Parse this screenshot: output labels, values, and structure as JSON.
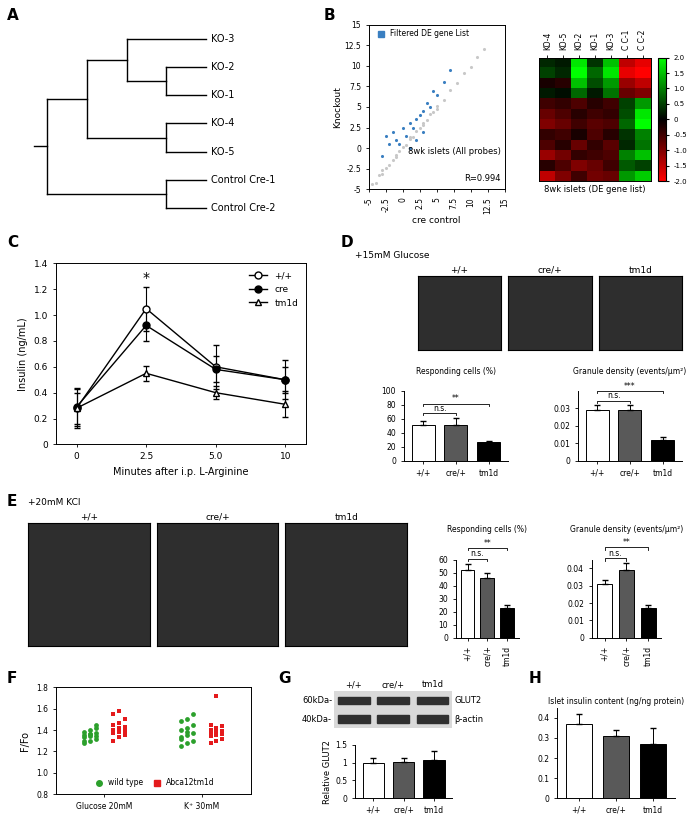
{
  "chart_data": [
    {
      "type": "dendrogram",
      "panel": "A",
      "clusters": [
        [
          [
            "KO-3",
            [
              "KO-2",
              "KO-1"
            ]
          ],
          [
            "KO-4",
            "KO-5"
          ]
        ],
        [
          "Control Cre-1",
          "Control Cre-2"
        ]
      ]
    },
    {
      "type": "scatter",
      "panel": "B",
      "xlabel": "cre control",
      "ylabel": "Knockout",
      "xlim": [
        -5,
        15
      ],
      "ylim": [
        -5,
        15
      ],
      "xticks": [
        -5,
        -2.5,
        0,
        2.5,
        5,
        7.5,
        10,
        12.5,
        15
      ],
      "yticks": [
        -5,
        -2.5,
        0,
        2.5,
        5,
        7.5,
        10,
        12.5,
        15
      ],
      "annotations": [
        "8wk islets (All probes)",
        "R=0.994"
      ],
      "legend": "upper left",
      "series": [
        {
          "color": "#c8c8c8",
          "x": [
            -4.5,
            -4,
            -3.5,
            -3,
            -2.5,
            -2,
            -1.5,
            -1,
            -0.5,
            0,
            0.5,
            1,
            1.5,
            2,
            2.5,
            3,
            3.5,
            4,
            4.5,
            5,
            6,
            7,
            8,
            9,
            10,
            11,
            12,
            -3,
            -1,
            1,
            3,
            5
          ],
          "y": [
            -4.4,
            -4.2,
            -3.3,
            -3.1,
            -2.4,
            -2.1,
            -1.4,
            -1.1,
            -0.4,
            0.1,
            0.4,
            1.1,
            1.4,
            2.1,
            2.4,
            3.1,
            3.4,
            4.1,
            4.4,
            5.1,
            5.9,
            7.1,
            7.9,
            9.1,
            9.9,
            11.1,
            12,
            -2.7,
            -0.8,
            1.3,
            2.8,
            4.7
          ]
        },
        {
          "name": "Filtered DE gene List",
          "color": "#3a7fc1",
          "x": [
            -3,
            -2.5,
            -2,
            -1.5,
            -1,
            -0.5,
            0,
            0.5,
            1,
            1.5,
            2,
            2.5,
            3,
            3.5,
            4,
            4.5,
            5,
            6,
            7,
            1,
            2,
            3
          ],
          "y": [
            -1,
            1.5,
            0.5,
            2,
            1,
            0.5,
            2.5,
            1.5,
            3,
            2.5,
            3.5,
            4,
            4.5,
            5.5,
            5,
            7,
            6.5,
            8,
            9.5,
            0,
            1,
            2
          ]
        }
      ]
    },
    {
      "type": "heatmap",
      "xlabel": "8wk islets (DE gene list)",
      "categories": [
        "KO-4",
        "KO-5",
        "KO-2",
        "KO-1",
        "KO-3",
        "C C-1",
        "C C-2"
      ],
      "cells": [
        [
          0.3,
          0.2,
          1.8,
          0.4,
          1.5,
          -1.5,
          -1.8
        ],
        [
          0.5,
          0.3,
          2.0,
          0.8,
          1.8,
          -1.8,
          -2.0
        ],
        [
          -0.2,
          -0.3,
          1.5,
          0.6,
          1.2,
          -1.2,
          -1.5
        ],
        [
          0.2,
          0.1,
          0.8,
          0.2,
          0.9,
          -0.8,
          -1.0
        ],
        [
          -0.5,
          -0.4,
          -0.6,
          -0.3,
          -0.5,
          0.5,
          1.2
        ],
        [
          -0.8,
          -0.6,
          -0.3,
          -0.5,
          -0.4,
          0.6,
          1.8
        ],
        [
          -1.0,
          -0.8,
          -0.5,
          -0.7,
          -0.6,
          0.8,
          2.0
        ],
        [
          -0.4,
          -0.5,
          -0.2,
          -0.6,
          -0.3,
          0.4,
          1.0
        ],
        [
          -0.6,
          -0.3,
          -0.8,
          -0.4,
          -0.7,
          0.3,
          0.9
        ],
        [
          -1.2,
          -0.9,
          -0.4,
          -0.5,
          -0.6,
          1.0,
          1.5
        ],
        [
          -0.3,
          -0.6,
          -1.0,
          -0.8,
          -0.5,
          0.7,
          0.5
        ],
        [
          -1.5,
          -1.0,
          -0.5,
          -0.9,
          -0.8,
          1.2,
          1.6
        ]
      ],
      "colorbar": {
        "range": [
          -2,
          2
        ],
        "ticks": [
          {
            "value": 2,
            "label": "2.0"
          },
          1.5,
          {
            "value": 1,
            "label": "1.0"
          },
          0.5,
          0,
          -0.5,
          {
            "value": -1,
            "label": "-1.0"
          },
          -1.5,
          {
            "value": -2,
            "label": "-2.0"
          }
        ]
      }
    },
    {
      "type": "line",
      "panel": "C",
      "xlabel": "Minutes after i.p. L-Arginine",
      "ylabel": "Insulin (ng/mL)",
      "categories": [
        "0",
        "2.5",
        "5.0",
        "10"
      ],
      "ylim": [
        0,
        1.4
      ],
      "yticks": [
        0,
        0.2,
        0.4,
        0.6,
        0.8,
        {
          "value": 1,
          "label": "1.0"
        },
        1.2,
        1.4
      ],
      "legend": "upper right",
      "annotations": [
        {
          "text": "*",
          "category": "2.5"
        }
      ],
      "series": [
        {
          "name": "+/+",
          "color": "#000000",
          "marker": "open circle",
          "values": [
            0.28,
            1.05,
            0.6,
            0.5
          ],
          "errors": [
            0.15,
            0.17,
            0.17,
            0.15
          ]
        },
        {
          "name": "cre",
          "color": "#000000",
          "marker": "circle",
          "values": [
            0.29,
            0.92,
            0.58,
            0.5
          ],
          "errors": [
            0.15,
            0.12,
            0.1,
            0.1
          ]
        },
        {
          "name": "tm1d",
          "color": "#000000",
          "marker": "open triangle",
          "values": [
            0.28,
            0.55,
            0.4,
            0.31
          ],
          "errors": [
            0.12,
            0.06,
            0.05,
            0.1
          ]
        }
      ]
    },
    {
      "type": "image_row",
      "panel": "D",
      "title": "+15mM Glucose",
      "labels": [
        "+/+",
        "cre/+",
        "tm1d"
      ]
    },
    {
      "type": "bar",
      "title": "Responding cells (%)",
      "categories": [
        "+/+",
        "cre/+",
        "tm1d"
      ],
      "values": [
        51,
        52,
        27
      ],
      "errors": [
        6,
        10,
        2
      ],
      "colors": [
        "#ffffff",
        "#595959",
        "#000000"
      ],
      "ylim": [
        0,
        100
      ],
      "yticks": [
        0,
        20,
        40,
        60,
        80,
        100
      ],
      "significance": [
        {
          "pair": [
            "+/+",
            "cre/+"
          ],
          "label": "n.s."
        },
        {
          "pair": [
            "+/+",
            "tm1d"
          ],
          "label": "**"
        }
      ]
    },
    {
      "type": "bar",
      "title": "Granule density (events/µm²)",
      "categories": [
        "+/+",
        "cre/+",
        "tm1d"
      ],
      "values": [
        0.029,
        0.029,
        0.012
      ],
      "errors": [
        0.003,
        0.003,
        0.0015
      ],
      "colors": [
        "#ffffff",
        "#595959",
        "#000000"
      ],
      "ylim": [
        0,
        0.04
      ],
      "yticks": [
        0,
        0.01,
        0.02,
        0.03
      ],
      "significance": [
        {
          "pair": [
            "+/+",
            "cre/+"
          ],
          "label": "n.s."
        },
        {
          "pair": [
            "+/+",
            "tm1d"
          ],
          "label": "***"
        }
      ]
    },
    {
      "type": "image_row",
      "panel": "E",
      "title": "+20mM KCl",
      "labels": [
        "+/+",
        "cre/+",
        "tm1d"
      ]
    },
    {
      "type": "bar",
      "title": "Responding cells (%)",
      "categories": [
        "+/+",
        "cre/+",
        "tm1d"
      ],
      "values": [
        52,
        46,
        23
      ],
      "errors": [
        5,
        4,
        2
      ],
      "colors": [
        "#ffffff",
        "#595959",
        "#000000"
      ],
      "ylim": [
        0,
        60
      ],
      "yticks": [
        0,
        10,
        20,
        30,
        40,
        50,
        60
      ],
      "significance": [
        {
          "pair": [
            "+/+",
            "cre/+"
          ],
          "label": "n.s."
        },
        {
          "pair": [
            "+/+",
            "tm1d"
          ],
          "label": "**"
        }
      ]
    },
    {
      "type": "bar",
      "title": "Granule density (events/µm²)",
      "categories": [
        "+/+",
        "cre/+",
        "tm1d"
      ],
      "values": [
        0.031,
        0.039,
        0.017
      ],
      "errors": [
        0.002,
        0.004,
        0.002
      ],
      "colors": [
        "#ffffff",
        "#595959",
        "#000000"
      ],
      "ylim": [
        0,
        0.045
      ],
      "yticks": [
        0,
        0.01,
        0.02,
        0.03,
        0.04
      ],
      "significance": [
        {
          "pair": [
            "+/+",
            "cre/+"
          ],
          "label": "n.s."
        },
        {
          "pair": [
            "+/+",
            "tm1d"
          ],
          "label": "**"
        }
      ]
    },
    {
      "type": "strip",
      "panel": "F",
      "ylabel": "F/Fo",
      "categories": [
        "Glucose 20mM",
        "K⁺ 30mM"
      ],
      "ylim": [
        0.8,
        1.8
      ],
      "yticks": [
        0.8,
        {
          "value": 1,
          "label": "1.0"
        },
        1.2,
        1.4,
        1.6,
        1.8
      ],
      "legend": "lower center",
      "series": [
        {
          "name": "wild type",
          "color": "#2ca02c",
          "marker": "circle",
          "values": [
            [
              1.28,
              1.3,
              1.32,
              1.33,
              1.34,
              1.34,
              1.35,
              1.36,
              1.37,
              1.38,
              1.4,
              1.42,
              1.3,
              1.36,
              1.45
            ],
            [
              1.25,
              1.28,
              1.3,
              1.33,
              1.35,
              1.37,
              1.4,
              1.42,
              1.45,
              1.48,
              1.5,
              1.55,
              1.32,
              1.38
            ]
          ]
        },
        {
          "name": "Abca12tm1d",
          "color": "#e41a1c",
          "marker": "square",
          "values": [
            [
              1.3,
              1.33,
              1.35,
              1.37,
              1.38,
              1.4,
              1.4,
              1.42,
              1.43,
              1.45,
              1.47,
              1.5,
              1.55,
              1.58,
              1.36
            ],
            [
              1.28,
              1.3,
              1.32,
              1.34,
              1.35,
              1.36,
              1.37,
              1.38,
              1.39,
              1.4,
              1.42,
              1.44,
              1.45,
              1.72
            ]
          ]
        }
      ]
    },
    {
      "type": "blot",
      "panel": "G",
      "columns": [
        "+/+",
        "cre/+",
        "tm1d"
      ],
      "rows": [
        {
          "left": "60kDa-",
          "right": "GLUT2"
        },
        {
          "left": "40kDa-",
          "right": "β-actin"
        }
      ]
    },
    {
      "type": "bar",
      "ylabel": "Relative GLUT2",
      "categories": [
        "+/+",
        "cre/+",
        "tm1d"
      ],
      "values": [
        1.0,
        1.03,
        1.07
      ],
      "errors": [
        0.13,
        0.1,
        0.27
      ],
      "colors": [
        "#ffffff",
        "#595959",
        "#000000"
      ],
      "ylim": [
        0,
        1.5
      ],
      "yticks": [
        0,
        0.5,
        1,
        1.5
      ]
    },
    {
      "type": "bar",
      "panel": "H",
      "title": "Islet insulin content (ng/ng protein)",
      "categories": [
        "+/+",
        "cre/+",
        "tm1d"
      ],
      "values": [
        0.37,
        0.31,
        0.27
      ],
      "errors": [
        0.05,
        0.03,
        0.08
      ],
      "colors": [
        "#ffffff",
        "#595959",
        "#000000"
      ],
      "ylim": [
        0,
        0.45
      ],
      "yticks": [
        0,
        0.1,
        0.2,
        0.3,
        0.4
      ]
    }
  ]
}
